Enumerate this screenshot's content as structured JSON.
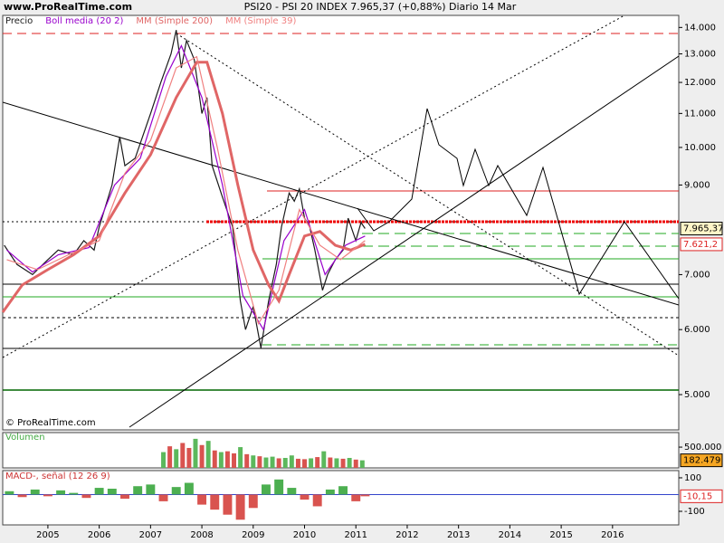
{
  "header": {
    "site": "www.ProRealTime.com",
    "watermark": "© ProRealTime.com"
  },
  "chart_data": [
    {
      "type": "line",
      "title": "PSI20 - PSI 20 INDEX    7.965,37 (+0,88%)    Diario  14 Mar",
      "log_scale": true,
      "xlim": [
        2004.12,
        2017.29
      ],
      "ylim": [
        4529,
        14482
      ],
      "xticks": [
        2005,
        2006,
        2007,
        2008,
        2009,
        2010,
        2011,
        2012,
        2013,
        2014,
        2015,
        2016
      ],
      "yticks": [
        {
          "value": 14000,
          "label": "14.000"
        },
        {
          "value": 13000,
          "label": "13.000"
        },
        {
          "value": 12000,
          "label": "12.000"
        },
        {
          "value": 11000,
          "label": "11.000"
        },
        {
          "value": 10000,
          "label": "10.000"
        },
        {
          "value": 9000,
          "label": "9.000"
        },
        {
          "value": 7000,
          "label": "7.000"
        },
        {
          "value": 6000,
          "label": "6.000"
        },
        {
          "value": 5000,
          "label": "5.000"
        }
      ],
      "series": [
        {
          "name": "Precio",
          "color": "#1a1a1a",
          "x": [
            2004.15,
            2004.4,
            2004.7,
            2005.0,
            2005.2,
            2005.5,
            2005.7,
            2005.9,
            2006.0,
            2006.25,
            2006.4,
            2006.5,
            2006.7,
            2007.0,
            2007.2,
            2007.4,
            2007.5,
            2007.6,
            2007.7,
            2007.85,
            2008.0,
            2008.1,
            2008.2,
            2008.4,
            2008.6,
            2008.75,
            2008.85,
            2009.0,
            2009.15,
            2009.3,
            2009.45,
            2009.55,
            2009.7,
            2009.8,
            2009.9,
            2010.0,
            2010.1,
            2010.2,
            2010.35,
            2010.45,
            2010.6,
            2010.75,
            2010.85,
            2011.0,
            2011.1,
            2011.18
          ],
          "values": [
            7600,
            7200,
            7000,
            7300,
            7500,
            7400,
            7700,
            7500,
            8000,
            9000,
            10300,
            9500,
            9700,
            11000,
            12000,
            13000,
            13900,
            12500,
            13500,
            12800,
            11000,
            11500,
            9500,
            8700,
            8000,
            6500,
            6000,
            6400,
            5700,
            6500,
            7200,
            8000,
            8800,
            8600,
            8900,
            8200,
            8000,
            7500,
            6700,
            7000,
            7300,
            7500,
            8200,
            7700,
            8100,
            7965.37
          ]
        },
        {
          "name": "Boll media (20 2)",
          "color": "#9900cc",
          "x": [
            2004.2,
            2004.7,
            2005.2,
            2005.8,
            2006.3,
            2006.8,
            2007.3,
            2007.6,
            2008.0,
            2008.4,
            2008.8,
            2009.2,
            2009.6,
            2010.0,
            2010.4,
            2010.8,
            2011.18
          ],
          "values": [
            7500,
            7050,
            7400,
            7550,
            9000,
            9700,
            12200,
            13300,
            11500,
            9000,
            6600,
            6000,
            7700,
            8400,
            7000,
            7600,
            7800
          ]
        },
        {
          "name": "MM (Simple 200)",
          "color": "#e06666",
          "x": [
            2004.12,
            2004.5,
            2005.0,
            2005.5,
            2006.0,
            2006.5,
            2007.0,
            2007.5,
            2007.9,
            2008.1,
            2008.4,
            2008.7,
            2009.0,
            2009.3,
            2009.5,
            2009.7,
            2010.0,
            2010.3,
            2010.6,
            2010.9,
            2011.18
          ],
          "values": [
            6300,
            6800,
            7100,
            7400,
            7800,
            8800,
            9800,
            11500,
            12700,
            12700,
            11000,
            9000,
            7500,
            6800,
            6500,
            7000,
            7800,
            7900,
            7600,
            7500,
            7621.2
          ]
        },
        {
          "name": "MM (Simple 39)",
          "color": "#f08080",
          "x": [
            2004.2,
            2004.8,
            2005.4,
            2006.0,
            2006.5,
            2007.0,
            2007.5,
            2007.9,
            2008.3,
            2008.7,
            2009.1,
            2009.5,
            2009.9,
            2010.3,
            2010.7,
            2011.18
          ],
          "values": [
            7300,
            7100,
            7400,
            7700,
            9300,
            10200,
            12500,
            12900,
            10000,
            7500,
            6100,
            6700,
            8400,
            7600,
            7300,
            7700
          ]
        }
      ],
      "last_labels": [
        {
          "value": 7965.37,
          "label": "7.965,37"
        },
        {
          "value": 7621.2,
          "label": "7.621,2"
        }
      ]
    },
    {
      "type": "bar",
      "title": "Volumen",
      "xlim": [
        2004.12,
        2017.29
      ],
      "ylim": [
        0,
        850000
      ],
      "yticks": [
        {
          "value": 500000,
          "label": "500.000"
        }
      ],
      "x": [
        2007.25,
        2007.375,
        2007.5,
        2007.625,
        2007.75,
        2007.875,
        2008.0,
        2008.125,
        2008.25,
        2008.375,
        2008.5,
        2008.625,
        2008.75,
        2008.875,
        2009.0,
        2009.125,
        2009.25,
        2009.375,
        2009.5,
        2009.625,
        2009.75,
        2009.875,
        2010.0,
        2010.125,
        2010.25,
        2010.375,
        2010.5,
        2010.625,
        2010.75,
        2010.875,
        2011.0,
        2011.125
      ],
      "values": [
        380000,
        520000,
        450000,
        600000,
        480000,
        700000,
        550000,
        650000,
        420000,
        380000,
        400000,
        350000,
        500000,
        330000,
        300000,
        280000,
        250000,
        270000,
        230000,
        240000,
        300000,
        220000,
        210000,
        230000,
        260000,
        400000,
        250000,
        230000,
        220000,
        240000,
        200000,
        182479
      ],
      "colors": [
        "#5cb85c",
        "#d9534f",
        "#5cb85c",
        "#d9534f",
        "#d9534f",
        "#5cb85c",
        "#d9534f",
        "#5cb85c",
        "#d9534f",
        "#5cb85c",
        "#d9534f",
        "#d9534f",
        "#5cb85c",
        "#d9534f",
        "#5cb85c",
        "#d9534f",
        "#5cb85c",
        "#5cb85c",
        "#d9534f",
        "#5cb85c",
        "#5cb85c",
        "#d9534f",
        "#d9534f",
        "#5cb85c",
        "#d9534f",
        "#5cb85c",
        "#d9534f",
        "#5cb85c",
        "#d9534f",
        "#5cb85c",
        "#d9534f",
        "#5cb85c"
      ],
      "last_labels": [
        {
          "value": 182479,
          "label": "182.479"
        }
      ]
    },
    {
      "type": "bar",
      "title": "MACD-, señal (12 26 9)",
      "xlim": [
        2004.12,
        2017.29
      ],
      "ylim": [
        -181,
        143
      ],
      "yticks": [
        100,
        -100
      ],
      "up_color": "#4caf50",
      "down_color": "#d9534f",
      "zero_color": "#3344cc",
      "x": [
        2004.25,
        2004.5,
        2004.75,
        2005.0,
        2005.25,
        2005.5,
        2005.75,
        2006.0,
        2006.25,
        2006.5,
        2006.75,
        2007.0,
        2007.25,
        2007.5,
        2007.75,
        2008.0,
        2008.25,
        2008.5,
        2008.75,
        2009.0,
        2009.25,
        2009.5,
        2009.75,
        2010.0,
        2010.25,
        2010.5,
        2010.75,
        2011.0,
        2011.18
      ],
      "values": [
        20,
        -15,
        30,
        -10,
        25,
        10,
        -20,
        40,
        35,
        -25,
        50,
        60,
        -40,
        45,
        70,
        -60,
        -90,
        -120,
        -150,
        -80,
        60,
        90,
        40,
        -30,
        -70,
        30,
        50,
        -40,
        -10.15
      ],
      "last_labels": [
        {
          "value": -10.15,
          "label": "-10,15"
        }
      ]
    }
  ]
}
